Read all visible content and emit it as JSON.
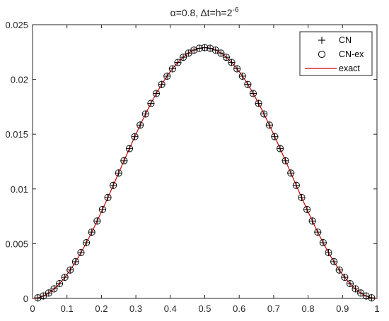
{
  "chart_data": {
    "type": "line",
    "title_prefix": "α=0.8, Δt=h=2",
    "title_exponent": "-6",
    "xlabel": "",
    "ylabel": "",
    "xlim": [
      0,
      1
    ],
    "ylim": [
      0,
      0.025
    ],
    "x_ticks": [
      0,
      0.1,
      0.2,
      0.3,
      0.4,
      0.5,
      0.6,
      0.7,
      0.8,
      0.9,
      1
    ],
    "x_tick_labels": [
      "0",
      "0.1",
      "0.2",
      "0.3",
      "0.4",
      "0.5",
      "0.6",
      "0.7",
      "0.8",
      "0.9",
      "1"
    ],
    "y_ticks": [
      0,
      0.005,
      0.01,
      0.015,
      0.02,
      0.025
    ],
    "y_tick_labels": [
      "0",
      "0.005",
      "0.01",
      "0.015",
      "0.02",
      "0.025"
    ],
    "grid": false,
    "legend_position": "top-right",
    "peak": 0.0229,
    "point_x_step": 0.015625,
    "series": [
      {
        "name": "CN",
        "marker": "plus",
        "color": "#000000"
      },
      {
        "name": "CN-ex",
        "marker": "circle",
        "color": "#000000"
      },
      {
        "name": "exact",
        "marker": "none",
        "color": "#cc0000"
      }
    ]
  }
}
